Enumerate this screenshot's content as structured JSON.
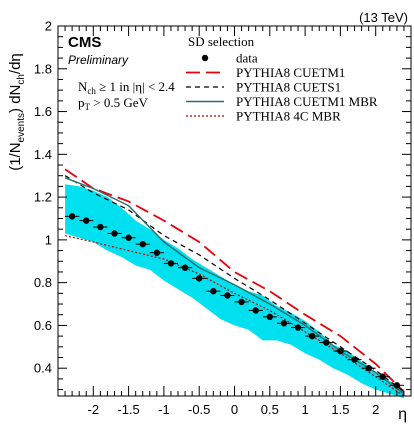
{
  "energy_label": "(13 TeV)",
  "experiment": "CMS",
  "status": "Preliminary",
  "cut_nch": {
    "base": "N",
    "sub": "ch",
    "rest": " ≥ 1 in |η| < 2.4"
  },
  "cut_pt": {
    "base": "p",
    "sub": "T",
    "rest": " > 0.5 GeV"
  },
  "chart_data": {
    "type": "line",
    "xlabel": "η",
    "ylabel": "(1/N_events) dN_ch/dη",
    "ylabel_parts": {
      "open": "(1/N",
      "sub1": "events",
      "mid": ") dN",
      "sub2": "ch",
      "end": "/dη"
    },
    "xlim": [
      -2.5,
      2.5
    ],
    "ylim": [
      0.27,
      2.0
    ],
    "xticks": [
      "-2",
      "-1.5",
      "-1",
      "-0.5",
      "0",
      "0.5",
      "1",
      "1.5",
      "2"
    ],
    "yticks": [
      "0.4",
      "0.6",
      "0.8",
      "1",
      "1.2",
      "1.4",
      "1.6",
      "1.8",
      "2"
    ],
    "legend_title": "SD selection",
    "legend_position": "top-right",
    "colors": {
      "data": "#000000",
      "cuetm1": "#e8000b",
      "cuets1": "#000000",
      "mbr": "#2a6e6e",
      "c4": "#c00000",
      "band": "#00e0ee"
    },
    "series": [
      {
        "name": "data",
        "style": "points",
        "x": [
          -2.3,
          -2.1,
          -1.9,
          -1.7,
          -1.5,
          -1.3,
          -1.1,
          -0.9,
          -0.7,
          -0.5,
          -0.3,
          -0.1,
          0.1,
          0.3,
          0.5,
          0.7,
          0.9,
          1.1,
          1.3,
          1.5,
          1.7,
          1.9,
          2.1,
          2.3
        ],
        "y": [
          1.11,
          1.09,
          1.06,
          1.03,
          1.01,
          0.98,
          0.94,
          0.89,
          0.87,
          0.82,
          0.76,
          0.74,
          0.71,
          0.67,
          0.64,
          0.61,
          0.59,
          0.55,
          0.52,
          0.48,
          0.44,
          0.4,
          0.36,
          0.32
        ]
      },
      {
        "name": "PYTHIA8 CUETM1",
        "style": "long-dash",
        "x": [
          -2.4,
          -2.0,
          -1.5,
          -1.0,
          -0.5,
          0.0,
          0.5,
          1.0,
          1.5,
          2.0,
          2.4
        ],
        "y": [
          1.33,
          1.24,
          1.18,
          1.09,
          0.99,
          0.85,
          0.76,
          0.65,
          0.55,
          0.42,
          0.29
        ]
      },
      {
        "name": "PYTHIA8 CUETS1",
        "style": "short-dash",
        "x": [
          -2.4,
          -2.0,
          -1.5,
          -1.0,
          -0.5,
          0.0,
          0.5,
          1.0,
          1.5,
          2.0,
          2.4
        ],
        "y": [
          1.3,
          1.22,
          1.14,
          1.02,
          0.93,
          0.82,
          0.72,
          0.61,
          0.5,
          0.39,
          0.29
        ]
      },
      {
        "name": "PYTHIA8 CUETM1 MBR",
        "style": "solid",
        "x": [
          -2.4,
          -2.0,
          -1.5,
          -1.0,
          -0.5,
          0.0,
          0.5,
          1.0,
          1.5,
          2.0,
          2.4
        ],
        "y": [
          1.29,
          1.24,
          1.16,
          0.99,
          0.87,
          0.79,
          0.7,
          0.6,
          0.48,
          0.38,
          0.28
        ]
      },
      {
        "name": "PYTHIA8 4C MBR",
        "style": "dotted",
        "x": [
          -2.4,
          -2.0,
          -1.5,
          -1.0,
          -0.5,
          0.0,
          0.5,
          1.0,
          1.5,
          2.0,
          2.4
        ],
        "y": [
          1.02,
          0.99,
          0.95,
          0.91,
          0.84,
          0.75,
          0.67,
          0.57,
          0.47,
          0.36,
          0.27
        ]
      }
    ],
    "band": {
      "x": [
        -2.4,
        -2.2,
        -2.0,
        -1.8,
        -1.6,
        -1.4,
        -1.2,
        -1.0,
        -0.8,
        -0.6,
        -0.4,
        -0.2,
        0.0,
        0.2,
        0.4,
        0.6,
        0.8,
        1.0,
        1.2,
        1.4,
        1.6,
        1.8,
        2.0,
        2.2,
        2.4
      ],
      "upper": [
        1.26,
        1.25,
        1.23,
        1.2,
        1.15,
        1.09,
        1.05,
        1.0,
        0.96,
        0.91,
        0.87,
        0.83,
        0.79,
        0.76,
        0.74,
        0.69,
        0.66,
        0.62,
        0.57,
        0.51,
        0.48,
        0.43,
        0.38,
        0.34,
        0.3
      ],
      "lower": [
        1.03,
        1.01,
        0.99,
        0.95,
        0.92,
        0.88,
        0.86,
        0.81,
        0.77,
        0.73,
        0.68,
        0.63,
        0.6,
        0.58,
        0.53,
        0.53,
        0.51,
        0.47,
        0.44,
        0.4,
        0.37,
        0.33,
        0.3,
        0.28,
        0.26
      ]
    }
  }
}
